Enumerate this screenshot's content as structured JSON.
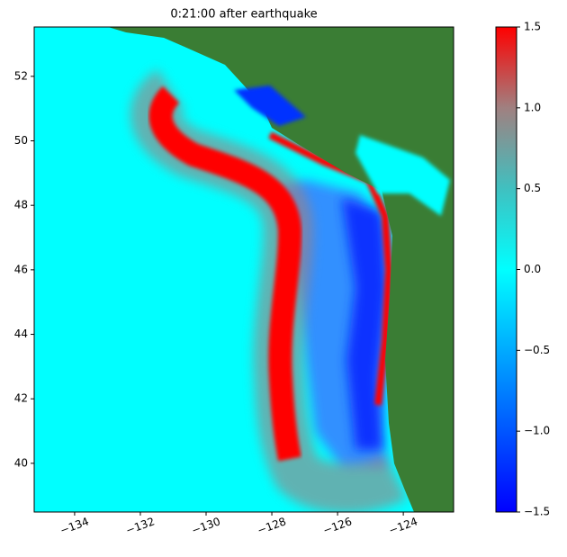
{
  "chart_data": {
    "type": "heatmap",
    "title": "0:21:00 after earthquake",
    "xlim": [
      -135.23,
      -122.47
    ],
    "ylim": [
      38.49,
      53.53
    ],
    "xticks": [
      {
        "value": -134,
        "label": "−134"
      },
      {
        "value": -132,
        "label": "−132"
      },
      {
        "value": -130,
        "label": "−130"
      },
      {
        "value": -128,
        "label": "−128"
      },
      {
        "value": -126,
        "label": "−126"
      },
      {
        "value": -124,
        "label": "−124"
      }
    ],
    "yticks": [
      40,
      42,
      44,
      46,
      48,
      50,
      52
    ],
    "colorbar": {
      "lim": [
        -1.5,
        1.5
      ],
      "ticks": [
        {
          "value": -1.5,
          "label": "−1.5"
        },
        {
          "value": -1.0,
          "label": "−1.0"
        },
        {
          "value": -0.5,
          "label": "−0.5"
        },
        {
          "value": 0.0,
          "label": "0.0"
        },
        0.5,
        {
          "value": 1.0,
          "label": "1.0"
        },
        1.5
      ],
      "colormap": [
        {
          "value": -1.5,
          "color": "#0000ff"
        },
        {
          "value": -0.75,
          "color": "#0080ff"
        },
        {
          "value": 0.0,
          "color": "#00ffff"
        },
        {
          "value": 0.5,
          "color": "#40c0c0"
        },
        {
          "value": 1.0,
          "color": "#a08080"
        },
        {
          "value": 1.5,
          "color": "#ff0000"
        }
      ]
    },
    "land_color": "#3a7d34",
    "sea_color": "#00ffff"
  }
}
